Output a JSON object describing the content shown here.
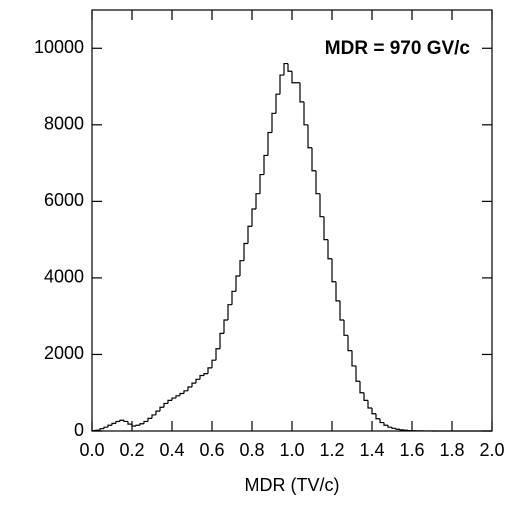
{
  "chart_data": {
    "type": "histogram",
    "annotation": "MDR = 970 GV/c",
    "xlabel": "MDR (TV/c)",
    "color": "#000000",
    "bins": [
      0,
      0.02,
      0.04,
      0.06,
      0.08,
      0.1,
      0.12,
      0.14,
      0.16,
      0.18,
      0.2,
      0.22,
      0.24,
      0.26,
      0.28,
      0.3,
      0.32,
      0.34,
      0.36,
      0.38,
      0.4,
      0.42,
      0.44,
      0.46,
      0.48,
      0.5,
      0.52,
      0.54,
      0.56,
      0.58,
      0.6,
      0.62,
      0.64,
      0.66,
      0.68,
      0.7,
      0.72,
      0.74,
      0.76,
      0.78,
      0.8,
      0.82,
      0.84,
      0.86,
      0.88,
      0.9,
      0.92,
      0.94,
      0.96,
      0.98,
      1.0,
      1.02,
      1.04,
      1.06,
      1.08,
      1.1,
      1.12,
      1.14,
      1.16,
      1.18,
      1.2,
      1.22,
      1.24,
      1.26,
      1.28,
      1.3,
      1.32,
      1.34,
      1.36,
      1.38,
      1.4,
      1.42,
      1.44,
      1.46,
      1.48,
      1.5,
      1.52,
      1.54,
      1.56,
      1.58,
      1.6,
      1.62,
      1.64,
      1.66,
      1.68,
      1.7,
      1.72,
      1.74,
      1.76,
      1.78,
      1.8,
      1.82,
      1.84,
      1.86,
      1.88,
      1.9,
      1.92,
      1.94,
      1.96,
      1.98,
      2.0
    ],
    "values": [
      10,
      20,
      60,
      100,
      150,
      200,
      250,
      280,
      250,
      180,
      130,
      150,
      190,
      250,
      330,
      420,
      520,
      620,
      720,
      800,
      860,
      920,
      980,
      1050,
      1150,
      1250,
      1350,
      1450,
      1500,
      1650,
      1850,
      2150,
      2550,
      2900,
      3300,
      3650,
      4050,
      4450,
      4900,
      5350,
      5800,
      6200,
      6700,
      7200,
      7800,
      8300,
      8800,
      9300,
      9600,
      9400,
      9100,
      9100,
      8600,
      8000,
      7400,
      6800,
      6200,
      5600,
      5000,
      4500,
      3900,
      3400,
      2900,
      2500,
      2100,
      1700,
      1300,
      1000,
      800,
      600,
      450,
      320,
      220,
      150,
      100,
      70,
      45,
      30,
      20,
      12,
      8,
      5,
      3,
      2,
      1,
      0,
      0,
      0,
      0,
      0,
      0,
      0,
      0,
      0,
      0,
      0,
      0,
      0,
      0,
      0
    ],
    "xlim": [
      0,
      2
    ],
    "xticks": [
      {
        "value": 0,
        "label": "0.0"
      },
      0.2,
      0.4,
      0.6,
      0.8,
      {
        "value": 1,
        "label": "1.0"
      },
      1.2,
      1.4,
      1.6,
      1.8,
      {
        "value": 2,
        "label": "2.0"
      }
    ],
    "ylim": [
      0,
      11000
    ],
    "yticks": [
      0,
      2000,
      4000,
      6000,
      8000,
      10000
    ]
  }
}
